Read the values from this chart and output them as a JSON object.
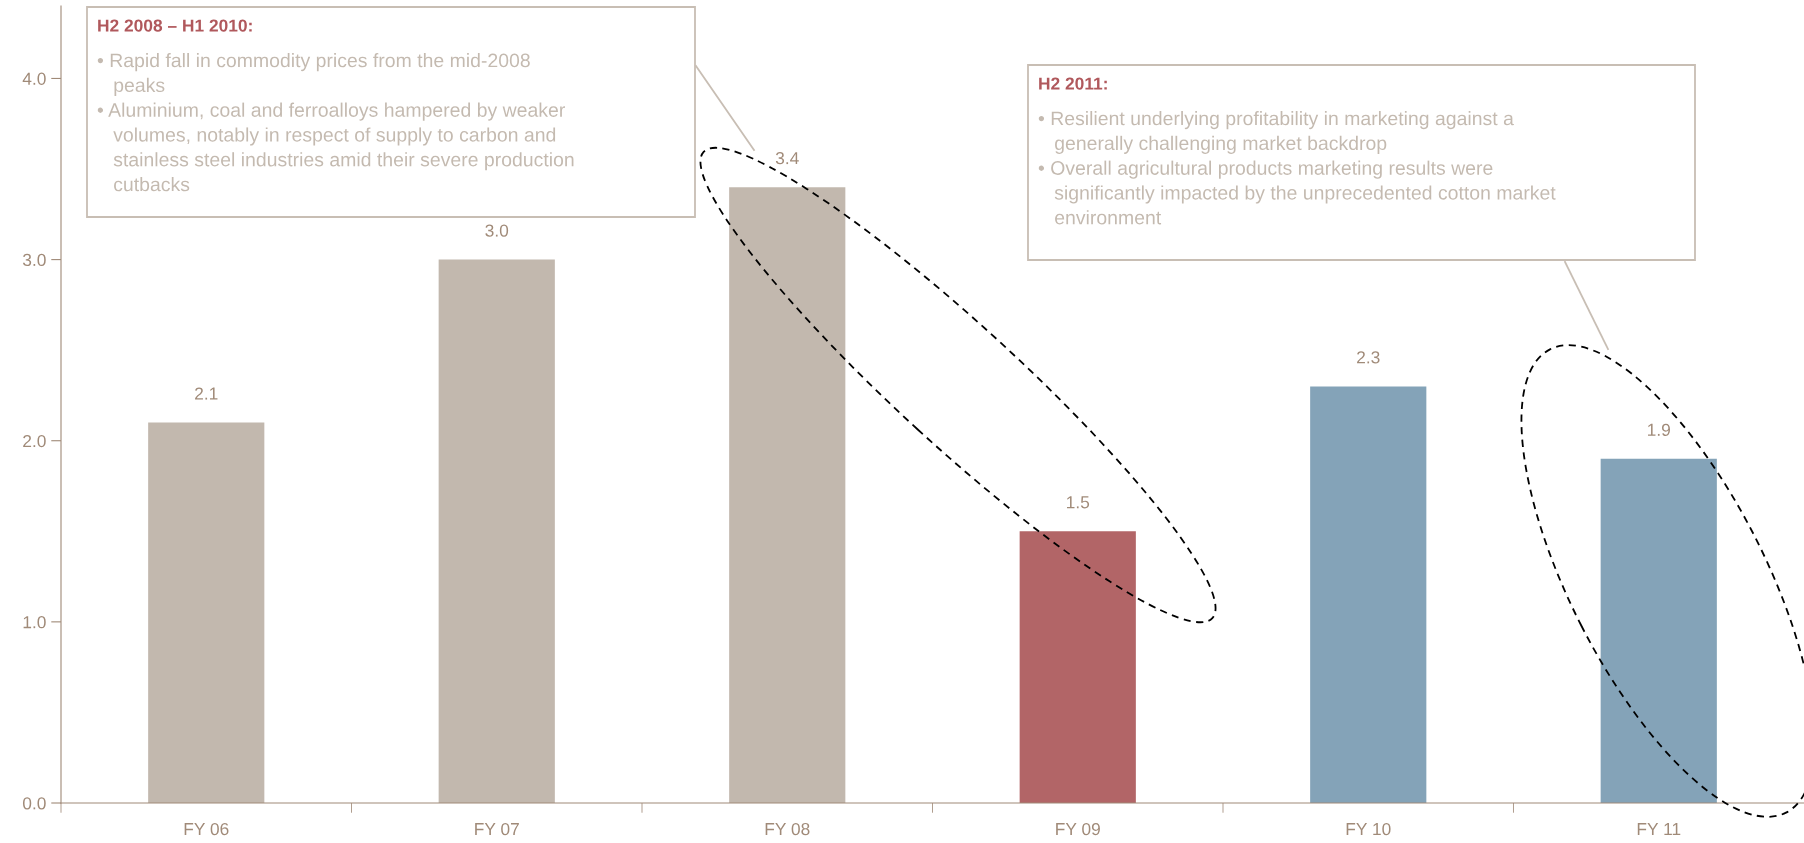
{
  "chart_data": {
    "type": "bar",
    "categories": [
      "FY 06",
      "FY 07",
      "FY 08",
      "FY 09",
      "FY 10",
      "FY 11"
    ],
    "values": [
      2.1,
      3.0,
      3.4,
      1.5,
      2.3,
      1.9
    ],
    "colors": [
      "#c2b8ae",
      "#c2b8ae",
      "#c2b8ae",
      "#b26567",
      "#84a3b8",
      "#84a3b8"
    ],
    "ylim": [
      0,
      4.4
    ],
    "yticks": [
      {
        "value": 0,
        "label": "0.0"
      },
      {
        "value": 1,
        "label": "1.0"
      },
      {
        "value": 2,
        "label": "2.0"
      },
      {
        "value": 3,
        "label": "3.0"
      },
      {
        "value": 4,
        "label": "4.0"
      }
    ],
    "value_labels": [
      "2.1",
      "3.0",
      "3.4",
      "1.5",
      "2.3",
      "1.9"
    ],
    "grid": false,
    "legend": false,
    "annotations": [
      "H2 2008 – H1 2010:\n• Rapid fall in commodity prices from the mid-2008\n   peaks\n• Aluminium, coal and ferroalloys hampered by weaker\n   volumes, notably in respect of supply to carbon and\n   stainless steel industries amid their severe production\n   cutbacks",
      "H2 2011:\n• Resilient underlying profitability in marketing against a\n   generally challenging market backdrop\n• Overall agricultural products marketing results were\n   significantly impacted by the unprecedented cotton market\n   environment"
    ]
  }
}
